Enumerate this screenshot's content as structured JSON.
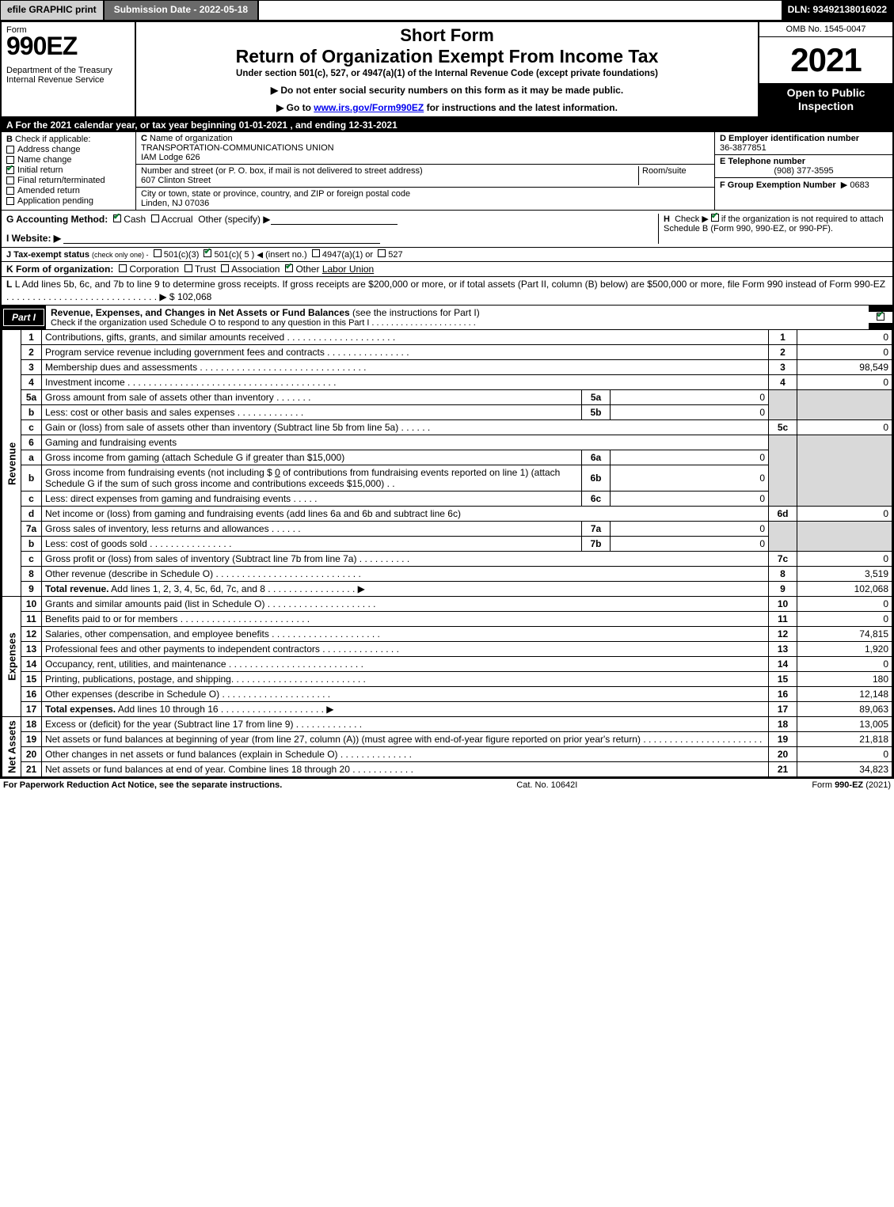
{
  "topbar": {
    "efile": "efile GRAPHIC print",
    "submission": "Submission Date - 2022-05-18",
    "dln": "DLN: 93492138016022"
  },
  "header": {
    "form_label": "Form",
    "form_number": "990EZ",
    "dept": "Department of the Treasury\nInternal Revenue Service",
    "short_form": "Short Form",
    "main_title": "Return of Organization Exempt From Income Tax",
    "subtitle": "Under section 501(c), 527, or 4947(a)(1) of the Internal Revenue Code (except private foundations)",
    "ssn_note": "Do not enter social security numbers on this form as it may be made public.",
    "goto_pre": "Go to ",
    "goto_link": "www.irs.gov/Form990EZ",
    "goto_post": " for instructions and the latest information.",
    "omb": "OMB No. 1545-0047",
    "year": "2021",
    "inspection": "Open to Public Inspection"
  },
  "row_a": "A  For the 2021 calendar year, or tax year beginning 01-01-2021 , and ending 12-31-2021",
  "section_b": {
    "label": "B",
    "check_if": "Check if applicable:",
    "items": [
      {
        "label": "Address change",
        "checked": false
      },
      {
        "label": "Name change",
        "checked": false
      },
      {
        "label": "Initial return",
        "checked": true
      },
      {
        "label": "Final return/terminated",
        "checked": false
      },
      {
        "label": "Amended return",
        "checked": false
      },
      {
        "label": "Application pending",
        "checked": false
      }
    ]
  },
  "section_c": {
    "c_label": "C",
    "name_label": "Name of organization",
    "org_name": "TRANSPORTATION-COMMUNICATIONS UNION",
    "org_sub": "IAM Lodge 626",
    "street_label": "Number and street (or P. O. box, if mail is not delivered to street address)",
    "room_label": "Room/suite",
    "street": "607 Clinton Street",
    "city_label": "City or town, state or province, country, and ZIP or foreign postal code",
    "city": "Linden, NJ  07036"
  },
  "section_def": {
    "d_label": "D Employer identification number",
    "ein": "36-3877851",
    "e_label": "E Telephone number",
    "phone": "(908) 377-3595",
    "f_label": "F Group Exemption Number",
    "f_value": "0683"
  },
  "row_g": {
    "label": "G Accounting Method:",
    "cash": "Cash",
    "accrual": "Accrual",
    "other": "Other (specify)"
  },
  "row_h": {
    "label": "H",
    "text1": "Check ▶",
    "text2": "if the organization is not required to attach Schedule B (Form 990, 990-EZ, or 990-PF)."
  },
  "row_i": {
    "label": "I Website: ▶"
  },
  "row_j": {
    "label": "J Tax-exempt status",
    "sub": "(check only one) -",
    "opt1": "501(c)(3)",
    "opt2": "501(c)( 5 )",
    "opt2b": "(insert no.)",
    "opt3": "4947(a)(1) or",
    "opt4": "527"
  },
  "row_k": {
    "label": "K Form of organization:",
    "corp": "Corporation",
    "trust": "Trust",
    "assoc": "Association",
    "other": "Other",
    "other_val": "Labor Union"
  },
  "row_l": {
    "text": "L Add lines 5b, 6c, and 7b to line 9 to determine gross receipts. If gross receipts are $200,000 or more, or if total assets (Part II, column (B) below) are $500,000 or more, file Form 990 instead of Form 990-EZ  .  .  .  .  .  .  .  .  .  .  .  .  .  .  .  .  .  .  .  .  .  .  .  .  .  .  .  .  .  ▶ $",
    "value": "102,068"
  },
  "part1": {
    "badge": "Part I",
    "title": "Revenue, Expenses, and Changes in Net Assets or Fund Balances",
    "note": "(see the instructions for Part I)",
    "subnote": "Check if the organization used Schedule O to respond to any question in this Part I  .  .  .  .  .  .  .  .  .  .  .  .  .  .  .  .  .  .  .  .  .  ."
  },
  "vlabels": {
    "revenue": "Revenue",
    "expenses": "Expenses",
    "netassets": "Net Assets"
  },
  "revenue": [
    {
      "n": "1",
      "desc": "Contributions, gifts, grants, and similar amounts received  .  .  .  .  .  .  .  .  .  .  .  .  .  .  .  .  .  .  .  .  .",
      "rn": "1",
      "val": "0"
    },
    {
      "n": "2",
      "desc": "Program service revenue including government fees and contracts  .  .  .  .  .  .  .  .  .  .  .  .  .  .  .  .",
      "rn": "2",
      "val": "0"
    },
    {
      "n": "3",
      "desc": "Membership dues and assessments  .  .  .  .  .  .  .  .  .  .  .  .  .  .  .  .  .  .  .  .  .  .  .  .  .  .  .  .  .  .  .  .",
      "rn": "3",
      "val": "98,549"
    },
    {
      "n": "4",
      "desc": "Investment income  .  .  .  .  .  .  .  .  .  .  .  .  .  .  .  .  .  .  .  .  .  .  .  .  .  .  .  .  .  .  .  .  .  .  .  .  .  .  .  .",
      "rn": "4",
      "val": "0"
    }
  ],
  "line5": {
    "a": {
      "n": "5a",
      "desc": "Gross amount from sale of assets other than inventory  .  .  .  .  .  .  .",
      "mn": "5a",
      "mv": "0"
    },
    "b": {
      "n": "b",
      "desc": "Less: cost or other basis and sales expenses  .  .  .  .  .  .  .  .  .  .  .  .  .",
      "mn": "5b",
      "mv": "0"
    },
    "c": {
      "n": "c",
      "desc": "Gain or (loss) from sale of assets other than inventory (Subtract line 5b from line 5a)  .  .  .  .  .  .",
      "rn": "5c",
      "val": "0"
    }
  },
  "line6": {
    "head": {
      "n": "6",
      "desc": "Gaming and fundraising events"
    },
    "a": {
      "n": "a",
      "desc": "Gross income from gaming (attach Schedule G if greater than $15,000)",
      "mn": "6a",
      "mv": "0"
    },
    "b": {
      "n": "b",
      "desc": "Gross income from fundraising events (not including $",
      "amt": "0",
      "desc2": "of contributions from fundraising events reported on line 1) (attach Schedule G if the sum of such gross income and contributions exceeds $15,000)    .   .",
      "mn": "6b",
      "mv": "0"
    },
    "c": {
      "n": "c",
      "desc": "Less: direct expenses from gaming and fundraising events  .  .  .  .  .",
      "mn": "6c",
      "mv": "0"
    },
    "d": {
      "n": "d",
      "desc": "Net income or (loss) from gaming and fundraising events (add lines 6a and 6b and subtract line 6c)",
      "rn": "6d",
      "val": "0"
    }
  },
  "line7": {
    "a": {
      "n": "7a",
      "desc": "Gross sales of inventory, less returns and allowances  .  .  .  .  .  .",
      "mn": "7a",
      "mv": "0"
    },
    "b": {
      "n": "b",
      "desc": "Less: cost of goods sold    .   .   .   .   .   .   .   .   .   .   .   .   .   .   .   .",
      "mn": "7b",
      "mv": "0"
    },
    "c": {
      "n": "c",
      "desc": "Gross profit or (loss) from sales of inventory (Subtract line 7b from line 7a)  .  .  .  .  .  .  .  .  .  .",
      "rn": "7c",
      "val": "0"
    }
  },
  "line8": {
    "n": "8",
    "desc": "Other revenue (describe in Schedule O)  .  .  .  .  .  .  .  .  .  .  .  .  .  .  .  .  .  .  .  .  .  .  .  .  .  .  .  .",
    "rn": "8",
    "val": "3,519"
  },
  "line9": {
    "n": "9",
    "desc": "Total revenue. Add lines 1, 2, 3, 4, 5c, 6d, 7c, and 8   .   .   .   .   .   .   .   .   .   .   .   .   .   .   .   .   .  ▶",
    "rn": "9",
    "val": "102,068"
  },
  "expenses": [
    {
      "n": "10",
      "desc": "Grants and similar amounts paid (list in Schedule O)  .  .  .  .  .  .  .  .  .  .  .  .  .  .  .  .  .  .  .  .  .",
      "rn": "10",
      "val": "0"
    },
    {
      "n": "11",
      "desc": "Benefits paid to or for members   .   .   .   .   .   .   .   .   .   .   .   .   .   .   .   .   .   .   .   .   .   .   .   .   .",
      "rn": "11",
      "val": "0"
    },
    {
      "n": "12",
      "desc": "Salaries, other compensation, and employee benefits  .  .  .  .  .  .  .  .  .  .  .  .  .  .  .  .  .  .  .  .  .",
      "rn": "12",
      "val": "74,815"
    },
    {
      "n": "13",
      "desc": "Professional fees and other payments to independent contractors  .  .  .  .  .  .  .  .  .  .  .  .  .  .  .",
      "rn": "13",
      "val": "1,920"
    },
    {
      "n": "14",
      "desc": "Occupancy, rent, utilities, and maintenance .  .  .  .  .  .  .  .  .  .  .  .  .  .  .  .  .  .  .  .  .  .  .  .  .  .",
      "rn": "14",
      "val": "0"
    },
    {
      "n": "15",
      "desc": "Printing, publications, postage, and shipping.  .  .  .  .  .  .  .  .  .  .  .  .  .  .  .  .  .  .  .  .  .  .  .  .  .",
      "rn": "15",
      "val": "180"
    },
    {
      "n": "16",
      "desc": "Other expenses (describe in Schedule O)   .   .   .   .   .   .   .   .   .   .   .   .   .   .   .   .   .   .   .   .   .",
      "rn": "16",
      "val": "12,148"
    },
    {
      "n": "17",
      "desc": "Total expenses. Add lines 10 through 16    .   .   .   .   .   .   .   .   .   .   .   .   .   .   .   .   .   .   .   .  ▶",
      "rn": "17",
      "val": "89,063",
      "bold": true
    }
  ],
  "netassets": [
    {
      "n": "18",
      "desc": "Excess or (deficit) for the year (Subtract line 17 from line 9)      .   .   .   .   .   .   .   .   .   .   .   .   .",
      "rn": "18",
      "val": "13,005"
    },
    {
      "n": "19",
      "desc": "Net assets or fund balances at beginning of year (from line 27, column (A)) (must agree with end-of-year figure reported on prior year's return) .  .  .  .  .  .  .  .  .  .  .  .  .  .  .  .  .  .  .  .  .  .  .",
      "rn": "19",
      "val": "21,818"
    },
    {
      "n": "20",
      "desc": "Other changes in net assets or fund balances (explain in Schedule O) .  .  .  .  .  .  .  .  .  .  .  .  .  .",
      "rn": "20",
      "val": "0"
    },
    {
      "n": "21",
      "desc": "Net assets or fund balances at end of year. Combine lines 18 through 20 .  .  .  .  .  .  .  .  .  .  .  .",
      "rn": "21",
      "val": "34,823"
    }
  ],
  "footer": {
    "left": "For Paperwork Reduction Act Notice, see the separate instructions.",
    "center": "Cat. No. 10642I",
    "right_pre": "Form ",
    "right_bold": "990-EZ",
    "right_post": " (2021)"
  }
}
